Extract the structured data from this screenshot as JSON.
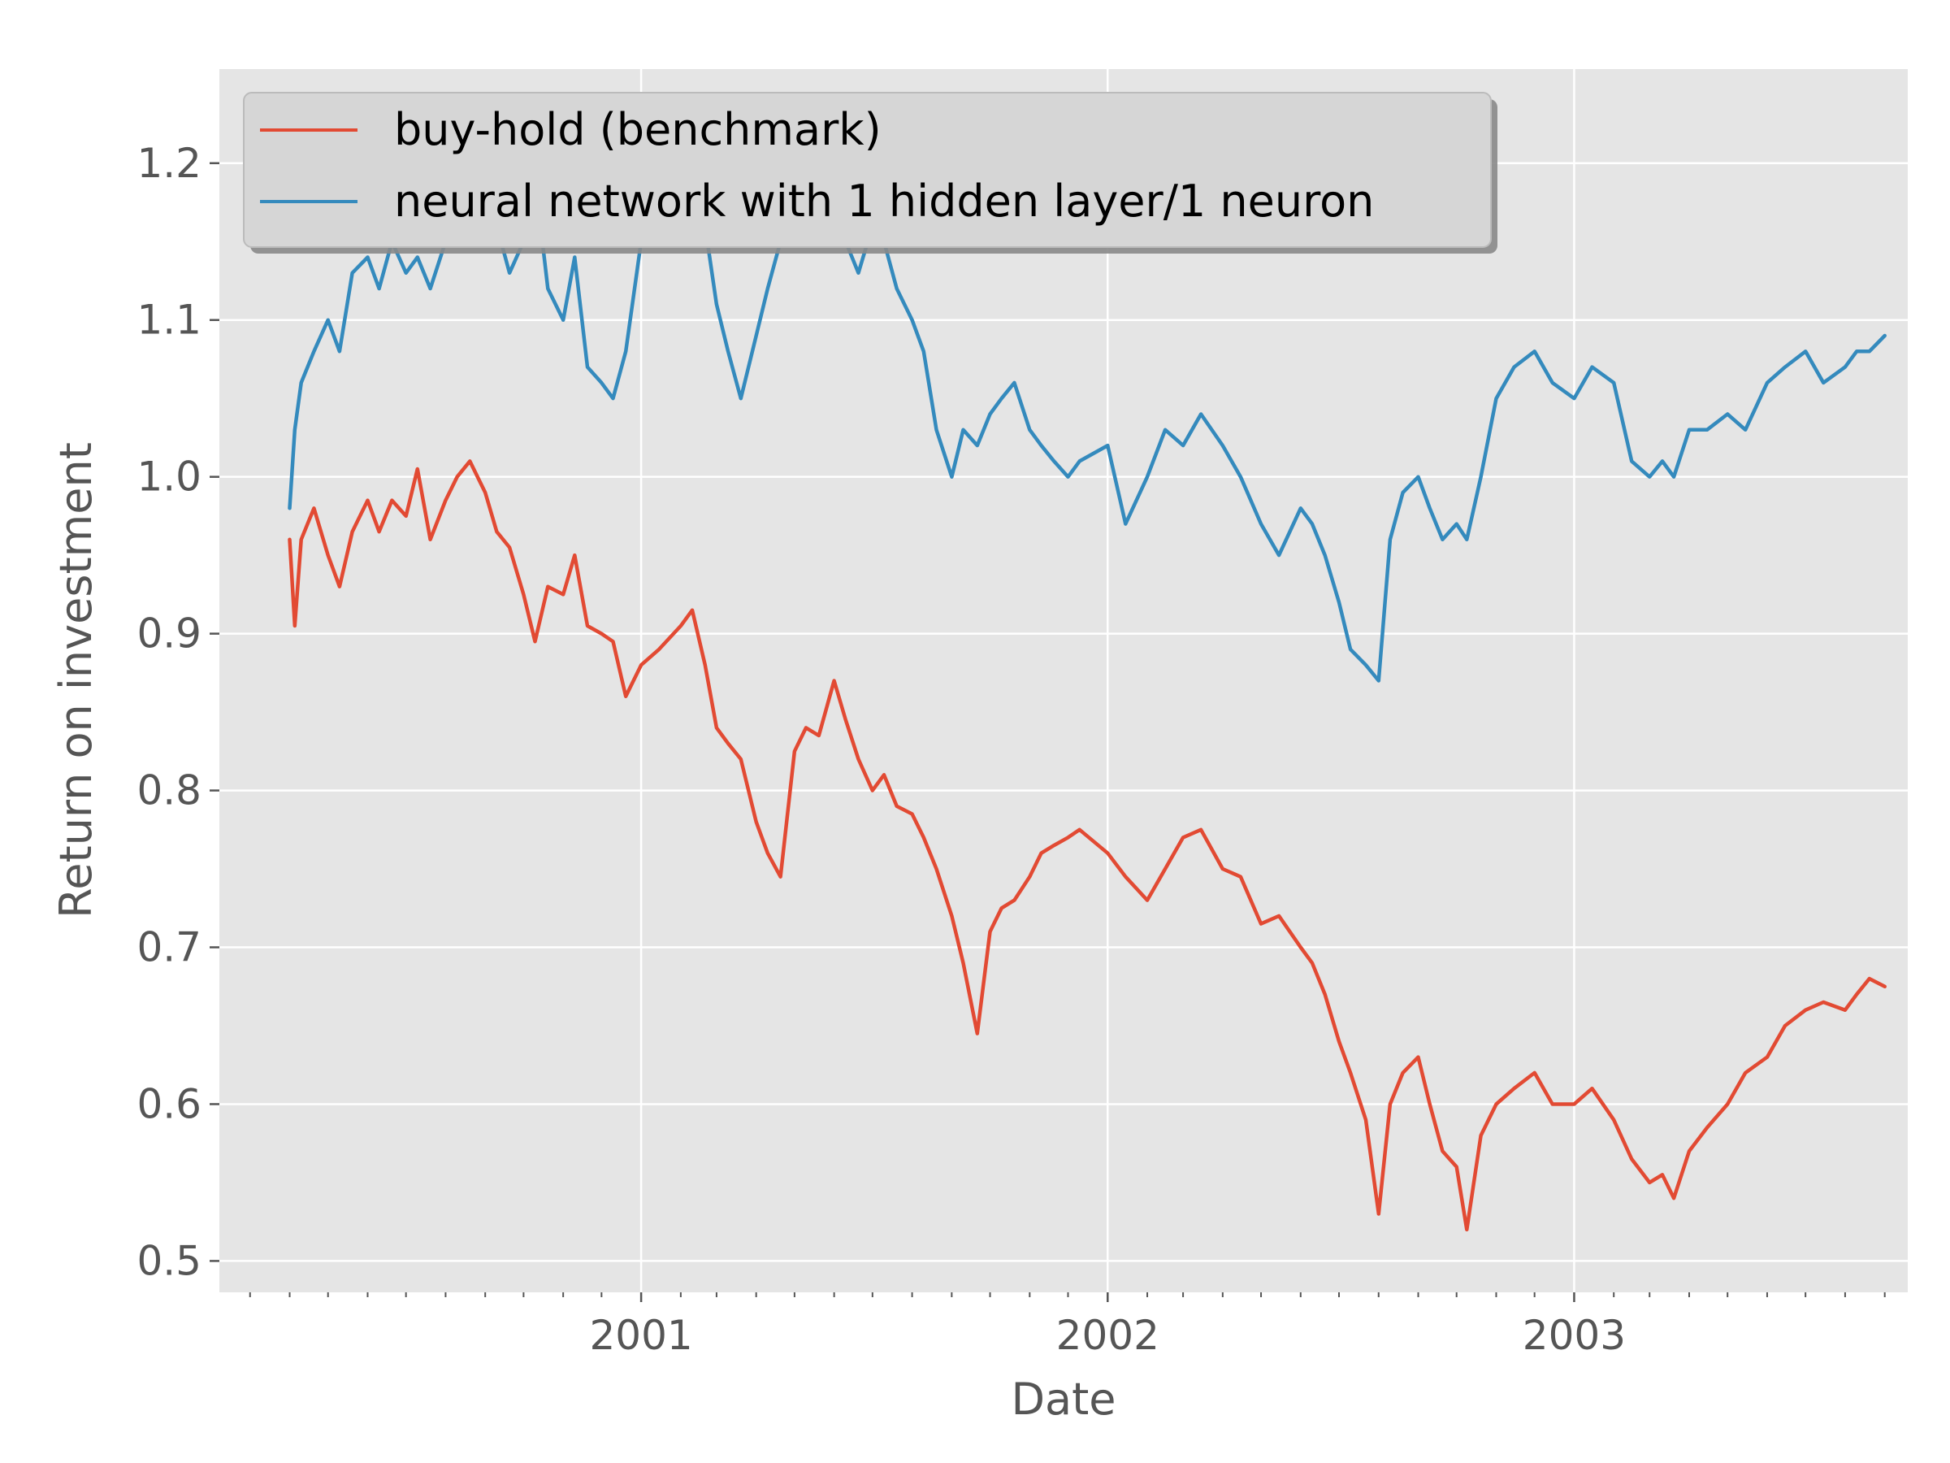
{
  "chart_data": {
    "type": "line",
    "title": "",
    "xlabel": "Date",
    "ylabel": "Return on investment",
    "x_axis_type": "date",
    "xlim": [
      "2000-02-06",
      "2003-09-19"
    ],
    "ylim": [
      0.48,
      1.26
    ],
    "x_ticks": [
      {
        "date": "2001-01-01",
        "label": "2001"
      },
      {
        "date": "2002-01-01",
        "label": "2002"
      },
      {
        "date": "2003-01-01",
        "label": "2003"
      }
    ],
    "y_ticks": [
      {
        "value": 0.5,
        "label": "0.5"
      },
      {
        "value": 0.6,
        "label": "0.6"
      },
      {
        "value": 0.7,
        "label": "0.7"
      },
      {
        "value": 0.8,
        "label": "0.8"
      },
      {
        "value": 0.9,
        "label": "0.9"
      },
      {
        "value": 1.0,
        "label": "1.0"
      },
      {
        "value": 1.1,
        "label": "1.1"
      },
      {
        "value": 1.2,
        "label": "1.2"
      }
    ],
    "grid": true,
    "legend_position": "top-left",
    "style": {
      "axes_background": "#E5E5E5",
      "grid_color": "#FFFFFF",
      "tick_color": "#555555"
    },
    "series": [
      {
        "name": "buy-hold (benchmark)",
        "color": "#E24A33",
        "x": [
          "2000-04-01",
          "2000-04-05",
          "2000-04-10",
          "2000-04-20",
          "2000-05-01",
          "2000-05-10",
          "2000-05-20",
          "2000-06-01",
          "2000-06-10",
          "2000-06-20",
          "2000-07-01",
          "2000-07-10",
          "2000-07-20",
          "2000-08-01",
          "2000-08-10",
          "2000-08-20",
          "2000-09-01",
          "2000-09-10",
          "2000-09-20",
          "2000-10-01",
          "2000-10-10",
          "2000-10-20",
          "2000-11-01",
          "2000-11-10",
          "2000-11-20",
          "2000-12-01",
          "2000-12-10",
          "2000-12-20",
          "2001-01-01",
          "2001-01-15",
          "2001-02-01",
          "2001-02-10",
          "2001-02-20",
          "2001-03-01",
          "2001-03-10",
          "2001-03-20",
          "2001-04-01",
          "2001-04-10",
          "2001-04-20",
          "2001-05-01",
          "2001-05-10",
          "2001-05-20",
          "2001-06-01",
          "2001-06-10",
          "2001-06-20",
          "2001-07-01",
          "2001-07-10",
          "2001-07-20",
          "2001-08-01",
          "2001-08-10",
          "2001-08-20",
          "2001-09-01",
          "2001-09-10",
          "2001-09-21",
          "2001-10-01",
          "2001-10-10",
          "2001-10-20",
          "2001-11-01",
          "2001-11-10",
          "2001-11-20",
          "2001-12-01",
          "2001-12-10",
          "2002-01-01",
          "2002-01-15",
          "2002-02-01",
          "2002-02-15",
          "2002-03-01",
          "2002-03-15",
          "2002-04-01",
          "2002-04-15",
          "2002-05-01",
          "2002-05-15",
          "2002-06-01",
          "2002-06-10",
          "2002-06-20",
          "2002-07-01",
          "2002-07-10",
          "2002-07-22",
          "2002-08-01",
          "2002-08-10",
          "2002-08-20",
          "2002-09-01",
          "2002-09-10",
          "2002-09-20",
          "2002-10-01",
          "2002-10-09",
          "2002-10-20",
          "2002-11-01",
          "2002-11-15",
          "2002-12-01",
          "2002-12-15",
          "2003-01-01",
          "2003-01-15",
          "2003-02-01",
          "2003-02-15",
          "2003-03-01",
          "2003-03-11",
          "2003-03-20",
          "2003-04-01",
          "2003-04-15",
          "2003-05-01",
          "2003-05-15",
          "2003-06-01",
          "2003-06-15",
          "2003-07-01",
          "2003-07-15",
          "2003-08-01",
          "2003-08-10",
          "2003-08-20",
          "2003-09-01"
        ],
        "y": [
          0.96,
          0.905,
          0.96,
          0.98,
          0.95,
          0.93,
          0.965,
          0.985,
          0.965,
          0.985,
          0.975,
          1.005,
          0.96,
          0.985,
          1.0,
          1.01,
          0.99,
          0.965,
          0.955,
          0.925,
          0.895,
          0.93,
          0.925,
          0.95,
          0.905,
          0.9,
          0.895,
          0.86,
          0.88,
          0.89,
          0.905,
          0.915,
          0.88,
          0.84,
          0.83,
          0.82,
          0.78,
          0.76,
          0.745,
          0.825,
          0.84,
          0.835,
          0.87,
          0.845,
          0.82,
          0.8,
          0.81,
          0.79,
          0.785,
          0.77,
          0.75,
          0.72,
          0.69,
          0.645,
          0.71,
          0.725,
          0.73,
          0.745,
          0.76,
          0.765,
          0.77,
          0.775,
          0.76,
          0.745,
          0.73,
          0.75,
          0.77,
          0.775,
          0.75,
          0.745,
          0.715,
          0.72,
          0.7,
          0.69,
          0.67,
          0.64,
          0.62,
          0.59,
          0.53,
          0.6,
          0.62,
          0.63,
          0.6,
          0.57,
          0.56,
          0.52,
          0.58,
          0.6,
          0.61,
          0.62,
          0.6,
          0.6,
          0.61,
          0.59,
          0.565,
          0.55,
          0.555,
          0.54,
          0.57,
          0.585,
          0.6,
          0.62,
          0.63,
          0.65,
          0.66,
          0.665,
          0.66,
          0.67,
          0.68,
          0.675
        ]
      },
      {
        "name": "neural network with 1 hidden layer/1 neuron",
        "color": "#348ABD",
        "x": [
          "2000-04-01",
          "2000-04-05",
          "2000-04-10",
          "2000-04-20",
          "2000-05-01",
          "2000-05-10",
          "2000-05-20",
          "2000-06-01",
          "2000-06-10",
          "2000-06-20",
          "2000-07-01",
          "2000-07-10",
          "2000-07-20",
          "2000-08-01",
          "2000-08-10",
          "2000-08-20",
          "2000-09-01",
          "2000-09-10",
          "2000-09-20",
          "2000-10-01",
          "2000-10-10",
          "2000-10-20",
          "2000-11-01",
          "2000-11-10",
          "2000-11-20",
          "2000-12-01",
          "2000-12-10",
          "2000-12-20",
          "2001-01-01",
          "2001-01-15",
          "2001-02-01",
          "2001-02-10",
          "2001-02-20",
          "2001-03-01",
          "2001-03-10",
          "2001-03-20",
          "2001-04-01",
          "2001-04-10",
          "2001-04-20",
          "2001-05-01",
          "2001-05-10",
          "2001-05-20",
          "2001-06-01",
          "2001-06-10",
          "2001-06-20",
          "2001-07-01",
          "2001-07-10",
          "2001-07-20",
          "2001-08-01",
          "2001-08-10",
          "2001-08-20",
          "2001-09-01",
          "2001-09-10",
          "2001-09-21",
          "2001-10-01",
          "2001-10-10",
          "2001-10-20",
          "2001-11-01",
          "2001-11-10",
          "2001-11-20",
          "2001-12-01",
          "2001-12-10",
          "2002-01-01",
          "2002-01-15",
          "2002-02-01",
          "2002-02-15",
          "2002-03-01",
          "2002-03-15",
          "2002-04-01",
          "2002-04-15",
          "2002-05-01",
          "2002-05-15",
          "2002-06-01",
          "2002-06-10",
          "2002-06-20",
          "2002-07-01",
          "2002-07-10",
          "2002-07-22",
          "2002-08-01",
          "2002-08-10",
          "2002-08-20",
          "2002-09-01",
          "2002-09-10",
          "2002-09-20",
          "2002-10-01",
          "2002-10-09",
          "2002-10-20",
          "2002-11-01",
          "2002-11-15",
          "2002-12-01",
          "2002-12-15",
          "2003-01-01",
          "2003-01-15",
          "2003-02-01",
          "2003-02-15",
          "2003-03-01",
          "2003-03-11",
          "2003-03-20",
          "2003-04-01",
          "2003-04-15",
          "2003-05-01",
          "2003-05-15",
          "2003-06-01",
          "2003-06-15",
          "2003-07-01",
          "2003-07-15",
          "2003-08-01",
          "2003-08-10",
          "2003-08-20",
          "2003-09-01"
        ],
        "y": [
          0.98,
          1.03,
          1.06,
          1.08,
          1.1,
          1.08,
          1.13,
          1.14,
          1.12,
          1.15,
          1.13,
          1.14,
          1.12,
          1.15,
          1.17,
          1.2,
          1.18,
          1.16,
          1.13,
          1.15,
          1.19,
          1.12,
          1.1,
          1.14,
          1.07,
          1.06,
          1.05,
          1.08,
          1.15,
          1.2,
          1.2,
          1.19,
          1.16,
          1.11,
          1.08,
          1.05,
          1.09,
          1.12,
          1.15,
          1.18,
          1.19,
          1.2,
          1.19,
          1.15,
          1.13,
          1.16,
          1.15,
          1.12,
          1.1,
          1.08,
          1.03,
          1.0,
          1.03,
          1.02,
          1.04,
          1.05,
          1.06,
          1.03,
          1.02,
          1.01,
          1.0,
          1.01,
          1.02,
          0.97,
          1.0,
          1.03,
          1.02,
          1.04,
          1.02,
          1.0,
          0.97,
          0.95,
          0.98,
          0.97,
          0.95,
          0.92,
          0.89,
          0.88,
          0.87,
          0.96,
          0.99,
          1.0,
          0.98,
          0.96,
          0.97,
          0.96,
          1.0,
          1.05,
          1.07,
          1.08,
          1.06,
          1.05,
          1.07,
          1.06,
          1.01,
          1.0,
          1.01,
          1.0,
          1.03,
          1.03,
          1.04,
          1.03,
          1.06,
          1.07,
          1.08,
          1.06,
          1.07,
          1.08,
          1.08,
          1.09
        ]
      }
    ]
  }
}
